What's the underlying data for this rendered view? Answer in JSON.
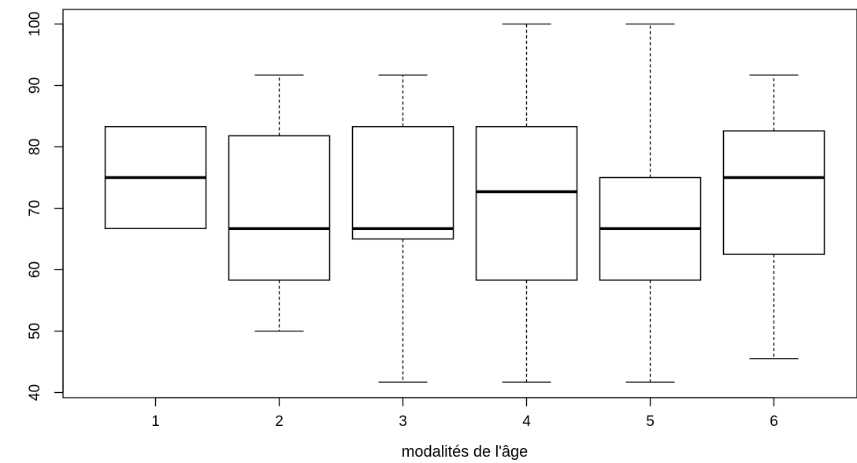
{
  "chart_data": {
    "type": "boxplot",
    "title": "",
    "xlabel": "modalités de l'âge",
    "ylabel": "",
    "categories": [
      "1",
      "2",
      "3",
      "4",
      "5",
      "6"
    ],
    "ylim": [
      40,
      100
    ],
    "yticks": [
      "40",
      "50",
      "60",
      "70",
      "80",
      "90",
      "100"
    ],
    "grid": false,
    "boxes": [
      {
        "category": "1",
        "whisker_low": 66.7,
        "q1": 66.7,
        "median": 75.0,
        "q3": 83.3,
        "whisker_high": 83.3
      },
      {
        "category": "2",
        "whisker_low": 50.0,
        "q1": 58.3,
        "median": 66.7,
        "q3": 81.8,
        "whisker_high": 91.7
      },
      {
        "category": "3",
        "whisker_low": 41.7,
        "q1": 65.0,
        "median": 66.7,
        "q3": 83.3,
        "whisker_high": 91.7
      },
      {
        "category": "4",
        "whisker_low": 41.7,
        "q1": 58.3,
        "median": 72.7,
        "q3": 83.3,
        "whisker_high": 100.0
      },
      {
        "category": "5",
        "whisker_low": 41.7,
        "q1": 58.3,
        "median": 66.7,
        "q3": 75.0,
        "whisker_high": 100.0
      },
      {
        "category": "6",
        "whisker_low": 45.5,
        "q1": 62.5,
        "median": 75.0,
        "q3": 82.6,
        "whisker_high": 91.7
      }
    ]
  }
}
